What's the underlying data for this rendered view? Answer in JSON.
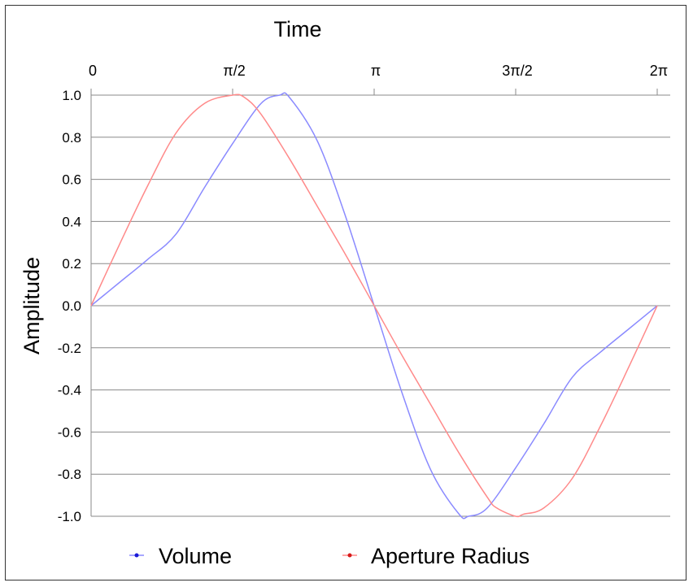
{
  "chart_data": {
    "type": "line",
    "title": "",
    "xlabel": "Time",
    "ylabel": "Amplitude",
    "xlim": [
      0,
      6.2832
    ],
    "ylim": [
      -1.0,
      1.0
    ],
    "x_tick_values": [
      0,
      1.5708,
      3.1416,
      4.7124,
      6.2832
    ],
    "x_tick_labels": [
      "0",
      "π/2",
      "π",
      "3π/2",
      "2π"
    ],
    "y_tick_values": [
      1.0,
      0.8,
      0.6,
      0.4,
      0.2,
      0.0,
      -0.2,
      -0.4,
      -0.6,
      -0.8,
      -1.0
    ],
    "y_tick_labels": [
      "1.0",
      "0.8",
      "0.6",
      "0.4",
      "0.2",
      "0.0",
      "-0.2",
      "-0.4",
      "-0.6",
      "-0.8",
      "-1.0"
    ],
    "grid": "horizontal",
    "legend_position": "bottom",
    "series": [
      {
        "name": "Volume",
        "color": "#8a8aff",
        "legend_marker_color": "#1a1ad6",
        "x": [
          0,
          0.3142,
          0.6283,
          0.9425,
          1.2566,
          1.5708,
          1.885,
          2.0944,
          2.2,
          2.5133,
          2.8274,
          3.1416,
          3.4558,
          3.7699,
          4.0841,
          4.1888,
          4.3982,
          4.7124,
          5.0265,
          5.3407,
          5.6549,
          5.969,
          6.2832
        ],
        "y": [
          0,
          0.11,
          0.22,
          0.34,
          0.56,
          0.77,
          0.96,
          1.0,
          0.99,
          0.78,
          0.42,
          0.0,
          -0.42,
          -0.78,
          -0.99,
          -1.0,
          -0.96,
          -0.77,
          -0.56,
          -0.34,
          -0.22,
          -0.11,
          0
        ]
      },
      {
        "name": "Aperture Radius",
        "color": "#ff8a8a",
        "legend_marker_color": "#d61a1a",
        "x": [
          0,
          0.3142,
          0.6283,
          0.9425,
          1.2566,
          1.5708,
          1.7,
          1.885,
          2.1991,
          2.5133,
          2.8274,
          3.1416,
          3.4558,
          3.7699,
          4.0841,
          4.3982,
          4.5,
          4.7124,
          4.8,
          5.0265,
          5.3407,
          5.6549,
          5.969,
          6.2832
        ],
        "y": [
          0,
          0.29,
          0.57,
          0.82,
          0.96,
          1.0,
          0.99,
          0.91,
          0.7,
          0.47,
          0.24,
          0.0,
          -0.24,
          -0.47,
          -0.7,
          -0.91,
          -0.96,
          -1.0,
          -0.99,
          -0.96,
          -0.82,
          -0.57,
          -0.29,
          0
        ]
      }
    ]
  }
}
